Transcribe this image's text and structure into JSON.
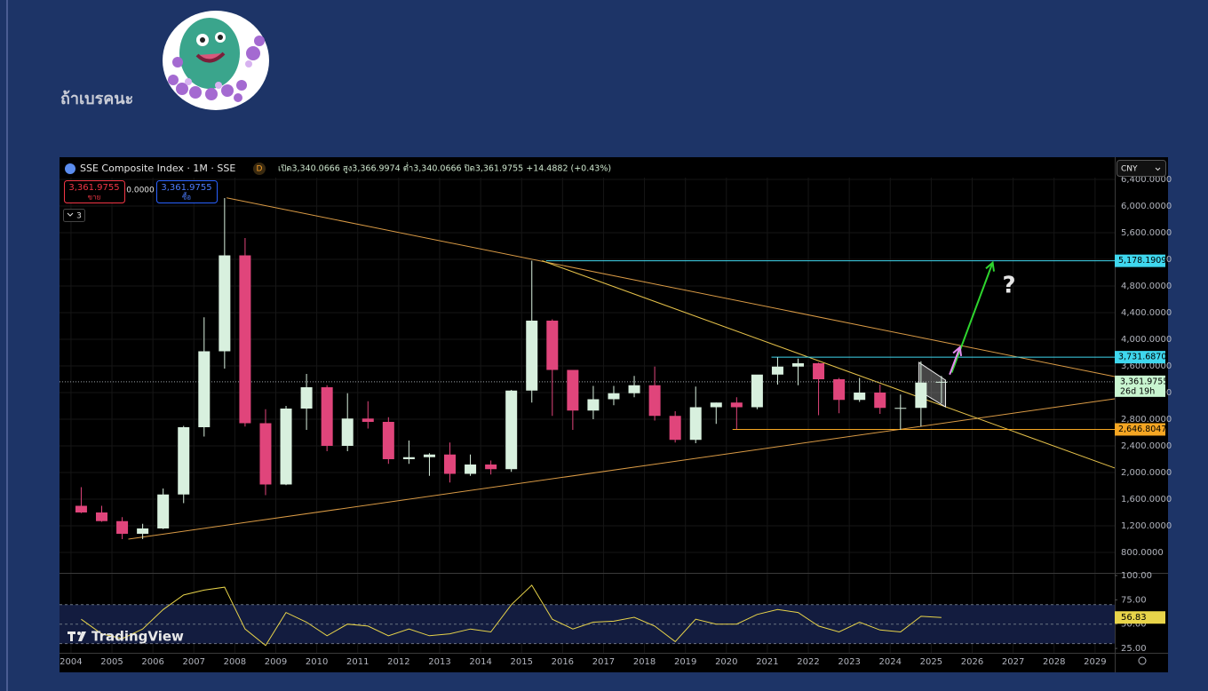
{
  "post_text": "ถ้าเบรคนะ",
  "chart_data": {
    "type": "candlestick",
    "title": "SSE Composite Index · 1M · SSE",
    "badge": "D",
    "ohlc_text": "เปิด3,340.0666 สูง3,366.9974 ต่ำ3,340.0666 ปิด3,361.9755 +14.4882 (+0.43%)",
    "sell": {
      "price": "3,361.9755",
      "label": "ขาย"
    },
    "spread": "0.0000",
    "buy": {
      "price": "3,361.9755",
      "label": "ซื้อ"
    },
    "indicator_count": "3",
    "currency": "CNY",
    "watermark": "TradingView",
    "up_color": "#d8f0de",
    "down_color": "#e0457b",
    "grid": true,
    "x": [
      2004.25,
      2004.75,
      2005.25,
      2005.75,
      2006.25,
      2006.75,
      2007.25,
      2007.75,
      2008.25,
      2008.75,
      2009.25,
      2009.75,
      2010.25,
      2010.75,
      2011.25,
      2011.75,
      2012.25,
      2012.75,
      2013.25,
      2013.75,
      2014.25,
      2014.75,
      2015.25,
      2015.75,
      2016.25,
      2016.75,
      2017.25,
      2017.75,
      2018.25,
      2018.75,
      2019.25,
      2019.75,
      2020.25,
      2020.75,
      2021.25,
      2021.75,
      2022.25,
      2022.75,
      2023.25,
      2023.75,
      2024.25,
      2024.75,
      2025.25
    ],
    "open": [
      1500,
      1400,
      1270,
      1080,
      1160,
      1670,
      2680,
      3820,
      5260,
      2740,
      1820,
      2960,
      3280,
      2400,
      2810,
      2760,
      2200,
      2230,
      2270,
      1980,
      2120,
      2050,
      3230,
      4280,
      3540,
      2930,
      3100,
      3190,
      3310,
      2850,
      2490,
      2980,
      3050,
      2980,
      3470,
      3590,
      3640,
      3400,
      3090,
      3200,
      2970,
      2970,
      3350
    ],
    "high": [
      1780,
      1500,
      1330,
      1230,
      1760,
      2700,
      4330,
      6120,
      5520,
      2950,
      3000,
      3480,
      3310,
      3190,
      3070,
      2830,
      2480,
      2290,
      2450,
      2270,
      2180,
      3240,
      5180,
      4300,
      3540,
      3300,
      3300,
      3450,
      3590,
      2920,
      3290,
      3050,
      3130,
      3460,
      3730,
      3710,
      3650,
      3420,
      3420,
      3320,
      3170,
      3670,
      3450
    ],
    "low": [
      1390,
      1260,
      1000,
      1000,
      1150,
      1540,
      2540,
      3560,
      2690,
      1660,
      1810,
      2640,
      2320,
      2320,
      2660,
      2130,
      2130,
      1950,
      1850,
      1950,
      1970,
      2010,
      3050,
      2850,
      2640,
      2800,
      3010,
      3130,
      2780,
      2450,
      2440,
      2730,
      2650,
      2950,
      3320,
      3310,
      2860,
      2890,
      3060,
      2880,
      2640,
      2690,
      3040
    ],
    "close": [
      1400,
      1270,
      1080,
      1160,
      1670,
      2680,
      3820,
      5260,
      2740,
      1820,
      2960,
      3280,
      2400,
      2810,
      2760,
      2200,
      2230,
      2270,
      1980,
      2120,
      2050,
      3230,
      4280,
      3540,
      2930,
      3100,
      3190,
      3310,
      2850,
      2490,
      2980,
      3050,
      2980,
      3470,
      3590,
      3640,
      3400,
      3090,
      3200,
      2970,
      2970,
      3350,
      3362
    ],
    "xlim": [
      2003.72,
      2029.48
    ],
    "xticks": [
      2004,
      2005,
      2006,
      2007,
      2008,
      2009,
      2010,
      2011,
      2012,
      2013,
      2014,
      2015,
      2016,
      2017,
      2018,
      2019,
      2020,
      2021,
      2022,
      2023,
      2024,
      2025,
      2026,
      2027,
      2028,
      2029
    ],
    "ylim": [
      493,
      6427
    ],
    "yticks": [
      {
        "value": 800,
        "label": "800.0000"
      },
      {
        "value": 1200,
        "label": "1,200.0000"
      },
      {
        "value": 1600,
        "label": "1,600.0000"
      },
      {
        "value": 2000,
        "label": "2,000.0000"
      },
      {
        "value": 2400,
        "label": "2,400.0000"
      },
      {
        "value": 2800,
        "label": "2,800.0000"
      },
      {
        "value": 3200,
        "label": "3,200.0000"
      },
      {
        "value": 3600,
        "label": "3,600.0000"
      },
      {
        "value": 4000,
        "label": "4,000.0000"
      },
      {
        "value": 4400,
        "label": "4,400.0000"
      },
      {
        "value": 4800,
        "label": "4,800.0000"
      },
      {
        "value": 5200,
        "label": "5,200.0000"
      },
      {
        "value": 5600,
        "label": "5,600.0000"
      },
      {
        "value": 6000,
        "label": "6,000.0000"
      },
      {
        "value": 6400,
        "label": "6,400.0000"
      }
    ],
    "last_price": {
      "value": 3361.9755,
      "label": "3,361.9755",
      "countdown": "26d 19h",
      "color": "#c8f5d0"
    },
    "levels": [
      {
        "value": 5178.1909,
        "label": "5,178.1909",
        "color": "#3fd7ee",
        "from": 2015.6
      },
      {
        "value": 3731.687,
        "label": "3,731.6870",
        "color": "#3fd7ee",
        "from": 2021.1
      },
      {
        "value": 2646.8047,
        "label": "2,646.8047",
        "color": "#f5a623",
        "from": 2020.15
      }
    ],
    "trendlines": [
      {
        "points": [
          [
            2007.8,
            6124
          ],
          [
            2029.48,
            3440
          ]
        ],
        "color": "#d99a45"
      },
      {
        "points": [
          [
            2005.4,
            1000
          ],
          [
            2029.48,
            3107
          ]
        ],
        "color": "#d99a45"
      },
      {
        "points": [
          [
            2015.5,
            5180
          ],
          [
            2029.48,
            2067
          ]
        ],
        "color": "#e6c24a"
      }
    ],
    "channel": {
      "points": [
        [
          2024.7,
          3653
        ],
        [
          2025.35,
          3387
        ],
        [
          2025.35,
          2985
        ],
        [
          2024.7,
          3227
        ]
      ],
      "color": "#9a9a9a"
    },
    "arrows": [
      {
        "points": [
          [
            2025.5,
            3500
          ],
          [
            2026.5,
            5150
          ]
        ],
        "color": "#2ed52e"
      },
      {
        "points": [
          [
            2025.45,
            3470
          ],
          [
            2025.7,
            3880
          ]
        ],
        "color": "#e48cf0"
      }
    ],
    "annotation": {
      "text": "?",
      "x": 2026.9,
      "y": 4800
    },
    "rsi": {
      "color": "#e8d44a",
      "values": [
        55,
        40,
        35,
        45,
        65,
        80,
        85,
        88,
        45,
        28,
        62,
        52,
        38,
        50,
        48,
        38,
        45,
        38,
        40,
        45,
        42,
        70,
        90,
        55,
        45,
        52,
        53,
        57,
        48,
        32,
        55,
        50,
        50,
        60,
        65,
        62,
        48,
        42,
        52,
        44,
        42,
        58,
        56.83
      ],
      "value_labels": [
        null,
        null,
        null,
        null,
        null,
        null,
        null,
        null,
        null,
        null,
        null,
        null,
        null,
        null,
        null,
        null,
        null,
        null,
        null,
        null,
        null,
        null,
        null,
        null,
        null,
        null,
        null,
        null,
        null,
        null,
        null,
        null,
        null,
        null,
        null,
        null,
        null,
        null,
        null,
        null,
        null,
        null,
        "56.83"
      ],
      "ylim": [
        20.5,
        102.7
      ],
      "yticks": [
        {
          "value": 25,
          "label": "25.00"
        },
        {
          "value": 50,
          "label": "50.00"
        },
        {
          "value": 75,
          "label": "75.00"
        },
        {
          "value": 100,
          "label": "100.00"
        }
      ],
      "band": [
        30,
        70
      ],
      "midline": 50
    }
  }
}
